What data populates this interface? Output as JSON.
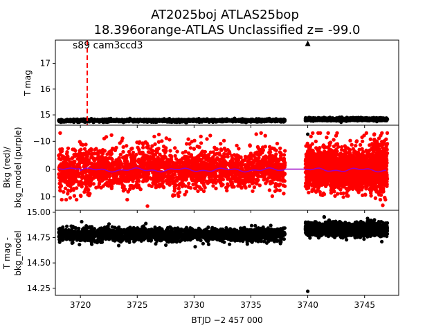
{
  "chart_data": [
    {
      "type": "scatter",
      "title_line1": "AT2025boj  ATLAS25bop",
      "title_line2": "18.396orange-ATLAS Unclassified z= -99.0",
      "annotation": "s89 cam3ccd3",
      "ylabel": "T mag",
      "y_inverted": true,
      "xlim": [
        3717.8,
        3748.0
      ],
      "ylim": [
        17.9,
        14.6
      ],
      "yticks": [
        "15",
        "16",
        "17"
      ],
      "event_line_x": 3720.6,
      "event_line_color": "#ff0000",
      "series": [
        {
          "segment": [
            3718.1,
            3738.0
          ],
          "level": 14.78,
          "color": "#000000"
        },
        {
          "segment": [
            3739.8,
            3747.0
          ],
          "level": 14.83,
          "color": "#000000"
        }
      ],
      "outliers": [
        {
          "x": 3740.0,
          "y": 14.25,
          "marker": "circle"
        }
      ],
      "upper_limit": {
        "x": 3740.0,
        "y": 17.75,
        "marker": "triangle"
      }
    },
    {
      "type": "scatter",
      "ylabel_line1": "Bkg (red)/",
      "ylabel_line2": "bkg_model (purple)",
      "xlim": [
        3717.8,
        3748.0
      ],
      "ylim": [
        -15.8,
        14.8
      ],
      "yticks": [
        "10",
        "0",
        "−10"
      ],
      "series": [
        {
          "name": "Bkg",
          "color": "#ff0000",
          "segment_a": [
            3718.1,
            3738.0
          ],
          "segment_b": [
            3739.8,
            3747.0
          ],
          "range": [
            -13,
            11
          ]
        },
        {
          "name": "bkg_model",
          "color": "#9a00c8",
          "level": 0.3
        }
      ]
    },
    {
      "type": "scatter",
      "ylabel_line1": "T mag -",
      "ylabel_line2": "bkg_model",
      "y_inverted": true,
      "xlim": [
        3717.8,
        3748.0
      ],
      "ylim": [
        15.02,
        14.18
      ],
      "yticks": [
        "14.25",
        "14.50",
        "14.75",
        "15.00"
      ],
      "xticks": [
        "3720",
        "3725",
        "3730",
        "3735",
        "3740",
        "3745"
      ],
      "xlabel": "BTJD −2 457 000",
      "series": [
        {
          "segment": [
            3718.1,
            3738.0
          ],
          "level": 14.78,
          "color": "#000000"
        },
        {
          "segment": [
            3739.8,
            3747.0
          ],
          "level": 14.83,
          "color": "#000000"
        }
      ],
      "outliers": [
        {
          "x": 3740.0,
          "y": 14.22,
          "marker": "circle"
        },
        {
          "x": 3730.1,
          "y": 14.66,
          "marker": "circle"
        }
      ]
    }
  ]
}
